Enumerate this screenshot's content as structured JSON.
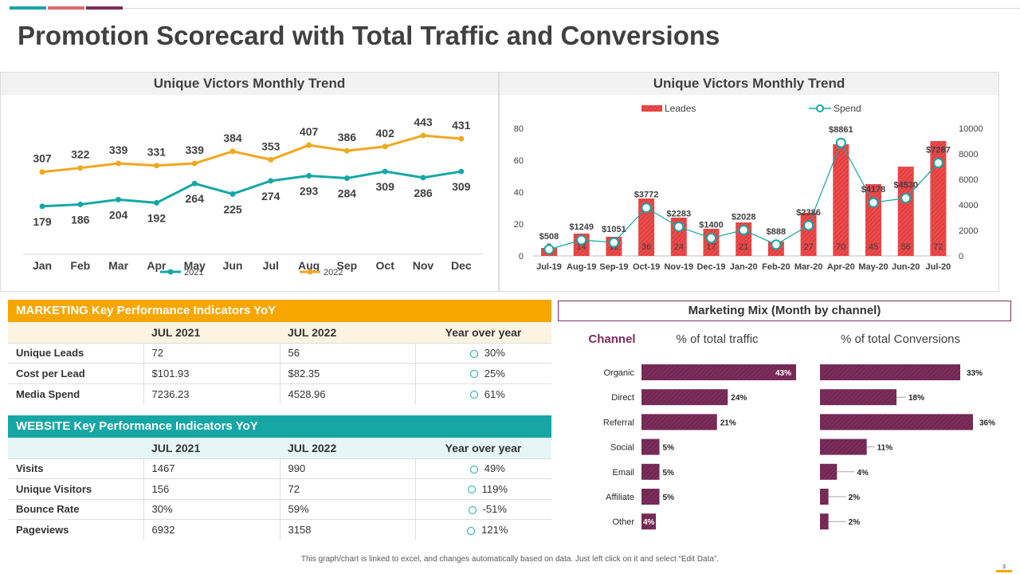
{
  "page": {
    "title": "Promotion Scorecard with Total Traffic and Conversions",
    "footer": "This graph/chart is linked to excel, and changes automatically based on data. Just left click on it and select “Edit Data”.",
    "page_number": "3",
    "accent_colors": [
      "#16a7a5",
      "#e0666b",
      "#7b2d5a"
    ]
  },
  "chart_data": [
    {
      "type": "line",
      "title": "Unique Victors Monthly Trend",
      "categories": [
        "Jan",
        "Feb",
        "Mar",
        "Apr",
        "May",
        "Jun",
        "Jul",
        "Aug",
        "Sep",
        "Oct",
        "Nov",
        "Dec"
      ],
      "series": [
        {
          "name": "2021",
          "color": "#16a7a5",
          "values": [
            179,
            186,
            204,
            192,
            264,
            225,
            274,
            293,
            284,
            309,
            286,
            309
          ]
        },
        {
          "name": "2022",
          "color": "#f0a820",
          "values": [
            307,
            322,
            339,
            331,
            339,
            384,
            353,
            407,
            386,
            402,
            443,
            431
          ]
        }
      ],
      "ylim": [
        0,
        550
      ],
      "legend": "bottom"
    },
    {
      "type": "bar",
      "title": "Unique Victors Monthly Trend",
      "categories": [
        "Jul-19",
        "Aug-19",
        "Sep-19",
        "Oct-19",
        "Nov-19",
        "Dec-19",
        "Jan-20",
        "Feb-20",
        "Mar-20",
        "Apr-20",
        "May-20",
        "Jun-20",
        "Jul-20"
      ],
      "series": [
        {
          "name": "Leades",
          "axis": "left",
          "color": "#ec4a4a",
          "values": [
            5,
            14,
            12,
            36,
            24,
            17,
            21,
            9,
            27,
            70,
            45,
            56,
            72
          ]
        },
        {
          "name": "Spend",
          "axis": "right",
          "type": "line",
          "color": "#16a7a5",
          "values": [
            508,
            1249,
            1051,
            3772,
            2283,
            1400,
            2028,
            888,
            2386,
            8861,
            4178,
            4530,
            7287
          ],
          "labels": [
            "$508",
            "$1249",
            "$1051",
            "$3772",
            "$2283",
            "$1400",
            "$2028",
            "$888",
            "$2386",
            "$8861",
            "$4178",
            "$4530",
            "$7287"
          ]
        }
      ],
      "ylim_left": [
        0,
        80
      ],
      "yticks_left": [
        "0",
        "20",
        "40",
        "60",
        "80"
      ],
      "ylim_right": [
        0,
        10000
      ],
      "yticks_right": [
        "0",
        "2000",
        "4000",
        "6000",
        "8000",
        "10000"
      ],
      "legend": "top"
    },
    {
      "type": "bar",
      "title": "Marketing Mix (Month by channel)",
      "channel_label": "Channel",
      "categories": [
        "Organic",
        "Direct",
        "Referral",
        "Social",
        "Email",
        "Affiliate",
        "Other"
      ],
      "series": [
        {
          "name": "% of total traffic",
          "values": [
            43,
            24,
            21,
            5,
            5,
            5,
            4
          ],
          "labels": [
            "43%",
            "24%",
            "21%",
            "5%",
            "5%",
            "5%",
            "4%"
          ]
        },
        {
          "name": "% of total Conversions",
          "values": [
            33,
            18,
            36,
            11,
            4,
            2,
            2
          ],
          "labels": [
            "33%",
            "18%",
            "36%",
            "11%",
            "4%",
            "2%",
            "2%"
          ]
        }
      ],
      "color": "#7b2d5a"
    }
  ],
  "marketing_kpi": {
    "title": "MARKETING Key Performance Indicators YoY",
    "header_color": "#f7a600",
    "columns": [
      "",
      "JUL 2021",
      "JUL 2022",
      "Year over year"
    ],
    "rows": [
      {
        "label": "Unique Leads",
        "v2021": "72",
        "v2022": "56",
        "yoy": "30%"
      },
      {
        "label": "Cost per Lead",
        "v2021": "$101.93",
        "v2022": "$82.35",
        "yoy": "25%"
      },
      {
        "label": "Media Spend",
        "v2021": "7236.23",
        "v2022": "4528.96",
        "yoy": "61%"
      }
    ]
  },
  "website_kpi": {
    "title": "WEBSITE Key Performance Indicators YoY",
    "header_color": "#16a7a5",
    "columns": [
      "",
      "JUL 2021",
      "JUL 2022",
      "Year over year"
    ],
    "rows": [
      {
        "label": "Visits",
        "v2021": "1467",
        "v2022": "990",
        "yoy": "49%"
      },
      {
        "label": "Unique Visitors",
        "v2021": "156",
        "v2022": "72",
        "yoy": "119%"
      },
      {
        "label": "Bounce Rate",
        "v2021": "30%",
        "v2022": "59%",
        "yoy": "-51%"
      },
      {
        "label": "Pageviews",
        "v2021": "6932",
        "v2022": "3158",
        "yoy": "121%"
      }
    ]
  }
}
